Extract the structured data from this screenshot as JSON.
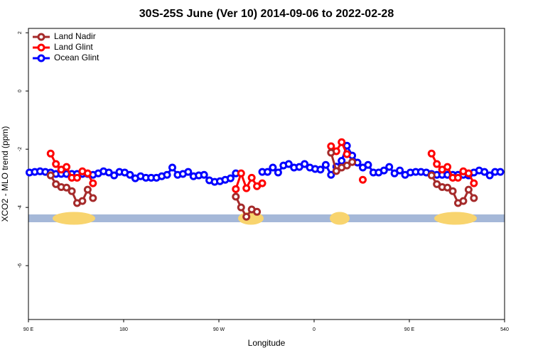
{
  "chart_data": {
    "type": "line",
    "title": "30S-25S June (Ver 10)   2014-09-06 to 2022-02-28",
    "x_label": "Longitude",
    "y_label": "XCO2 - MLO trend (ppm)",
    "x": [
      91,
      96,
      101,
      106,
      111,
      116,
      121,
      126,
      131,
      136,
      141,
      146,
      151,
      156,
      161,
      166,
      171,
      176,
      181,
      186,
      191,
      196,
      201,
      206,
      211,
      216,
      221,
      226,
      231,
      236,
      241,
      246,
      251,
      256,
      261,
      266,
      271,
      276,
      281,
      286,
      291,
      296,
      301,
      306,
      311,
      316,
      321,
      326,
      331,
      336,
      341,
      346,
      351,
      356,
      361,
      366,
      371,
      376,
      381,
      386,
      391,
      396,
      401,
      406,
      411,
      416,
      421,
      426,
      431,
      436,
      441,
      446,
      451,
      456,
      461,
      466,
      471,
      476,
      481,
      486,
      491,
      496,
      501,
      506,
      511,
      516,
      521,
      526,
      531,
      536
    ],
    "series": [
      {
        "name": "Land Nadir",
        "color": "#a52a2a",
        "values": [
          null,
          null,
          null,
          null,
          -2.9,
          -3.2,
          -3.3,
          -3.32,
          -3.44,
          -3.85,
          -3.78,
          -3.39,
          -3.68,
          null,
          null,
          null,
          null,
          null,
          null,
          null,
          null,
          null,
          null,
          null,
          null,
          null,
          null,
          null,
          null,
          null,
          null,
          null,
          null,
          null,
          null,
          null,
          null,
          null,
          null,
          -3.63,
          -4.0,
          -4.32,
          -4.07,
          -4.15,
          null,
          null,
          null,
          null,
          null,
          null,
          null,
          null,
          null,
          null,
          null,
          null,
          null,
          -2.12,
          -2.75,
          -2.63,
          -2.56,
          -2.44,
          null,
          null,
          null,
          null,
          null,
          null,
          null,
          null,
          null,
          null,
          null,
          null,
          null,
          null,
          -2.9,
          -3.2,
          -3.3,
          -3.32,
          -3.44,
          -3.85,
          -3.78,
          -3.39,
          -3.68,
          null,
          null,
          null,
          null,
          null
        ]
      },
      {
        "name": "Land Glint",
        "color": "#ff0000",
        "values": [
          null,
          null,
          null,
          null,
          -2.15,
          -2.51,
          -2.7,
          -2.61,
          -2.98,
          -2.98,
          -2.76,
          -2.83,
          -3.17,
          null,
          null,
          null,
          null,
          null,
          null,
          null,
          null,
          null,
          null,
          null,
          null,
          null,
          null,
          null,
          null,
          null,
          null,
          null,
          null,
          null,
          null,
          null,
          null,
          null,
          null,
          -3.37,
          -2.83,
          -3.34,
          -2.98,
          -3.27,
          -3.17,
          null,
          null,
          null,
          null,
          null,
          null,
          null,
          null,
          null,
          null,
          null,
          null,
          -1.9,
          -2.07,
          -1.76,
          -2.17,
          null,
          null,
          -3.05,
          null,
          null,
          null,
          null,
          null,
          null,
          null,
          null,
          null,
          null,
          null,
          null,
          -2.15,
          -2.51,
          -2.7,
          -2.61,
          -2.98,
          -2.98,
          -2.76,
          -2.83,
          -3.17,
          null,
          null,
          null,
          null,
          null
        ]
      },
      {
        "name": "Ocean Glint",
        "color": "#0000ff",
        "values": [
          -2.8,
          -2.78,
          -2.76,
          -2.78,
          -2.8,
          -2.85,
          -2.85,
          -2.85,
          -2.85,
          -2.85,
          -2.85,
          -2.85,
          -2.88,
          -2.83,
          -2.76,
          -2.8,
          -2.9,
          -2.78,
          -2.8,
          -2.88,
          -3.0,
          -2.93,
          -2.98,
          -2.98,
          -2.98,
          -2.93,
          -2.88,
          -2.63,
          -2.88,
          -2.85,
          -2.78,
          -2.93,
          -2.9,
          -2.88,
          -3.07,
          -3.12,
          -3.1,
          -3.05,
          -3.0,
          -2.83,
          null,
          null,
          null,
          null,
          -2.78,
          -2.78,
          -2.63,
          -2.8,
          -2.56,
          -2.51,
          -2.63,
          -2.61,
          -2.51,
          -2.63,
          -2.68,
          -2.7,
          -2.54,
          -2.88,
          -2.6,
          -2.4,
          -1.88,
          -2.22,
          -2.46,
          -2.63,
          -2.54,
          -2.8,
          -2.8,
          -2.73,
          -2.61,
          -2.83,
          -2.73,
          -2.88,
          -2.8,
          -2.78,
          -2.78,
          -2.8,
          -2.85,
          -2.88,
          -2.88,
          -2.88,
          -2.88,
          -2.88,
          -2.88,
          -2.9,
          -2.8,
          -2.73,
          -2.78,
          -2.9,
          -2.78,
          -2.78
        ]
      }
    ],
    "xlim": [
      90,
      540
    ],
    "xticks": [
      {
        "value": 90,
        "label": "90 E"
      },
      180,
      {
        "value": 270,
        "label": "90 W"
      },
      {
        "value": 360,
        "label": "0"
      },
      {
        "value": 450,
        "label": "90 E"
      },
      540
    ],
    "ylim": [
      -7.85,
      2.15
    ],
    "yticks": [
      2,
      0,
      -2,
      -4,
      -6
    ],
    "legend": "top-left"
  }
}
